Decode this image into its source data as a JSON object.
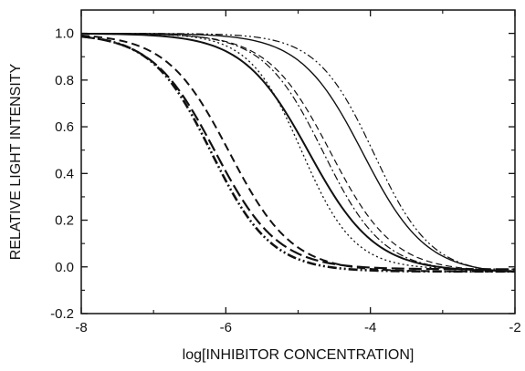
{
  "chart_data": {
    "type": "line",
    "xlabel": "log[INHIBITOR CONCENTRATION]",
    "ylabel": "RELATIVE LIGHT INTENSITY",
    "xlim": [
      -8,
      -2
    ],
    "ylim": [
      -0.2,
      1.1
    ],
    "x_ticks": [
      -8,
      -6,
      -4,
      -2
    ],
    "x_tick_labels": [
      "-8",
      "-6",
      "-4",
      "-2"
    ],
    "y_ticks": [
      -0.2,
      0.0,
      0.2,
      0.4,
      0.6,
      0.8,
      1.0
    ],
    "y_tick_labels": [
      "-0.2",
      "0.0",
      "0.2",
      "0.4",
      "0.6",
      "0.8",
      "1.0"
    ],
    "grid": false,
    "legend": "none",
    "x_step": 0.05,
    "series": [
      {
        "style": "dashdotdot-thick",
        "width": 2.6,
        "ic50_log": -6.2,
        "slope": 1.05,
        "top": 1.0,
        "bottom": -0.02
      },
      {
        "style": "longdash-thick",
        "width": 2.2,
        "ic50_log": -6.15,
        "slope": 1.0,
        "top": 1.0,
        "bottom": -0.01
      },
      {
        "style": "dash-thick",
        "width": 2.0,
        "ic50_log": -5.95,
        "slope": 1.0,
        "top": 1.0,
        "bottom": -0.02
      },
      {
        "style": "solid-thick",
        "width": 2.0,
        "ic50_log": -4.85,
        "slope": 0.95,
        "top": 1.0,
        "bottom": -0.02
      },
      {
        "style": "dotted",
        "width": 1.3,
        "ic50_log": -4.95,
        "slope": 1.2,
        "top": 1.0,
        "bottom": -0.01
      },
      {
        "style": "dashdot-thin",
        "width": 1.2,
        "ic50_log": -4.65,
        "slope": 1.05,
        "top": 1.0,
        "bottom": -0.02
      },
      {
        "style": "dash-thin",
        "width": 1.2,
        "ic50_log": -4.55,
        "slope": 1.0,
        "top": 1.0,
        "bottom": -0.02
      },
      {
        "style": "solid-thin",
        "width": 1.4,
        "ic50_log": -4.1,
        "slope": 1.0,
        "top": 1.0,
        "bottom": -0.03
      },
      {
        "style": "dashdotdot-thin",
        "width": 1.2,
        "ic50_log": -3.95,
        "slope": 1.1,
        "top": 1.0,
        "bottom": -0.03
      }
    ]
  }
}
